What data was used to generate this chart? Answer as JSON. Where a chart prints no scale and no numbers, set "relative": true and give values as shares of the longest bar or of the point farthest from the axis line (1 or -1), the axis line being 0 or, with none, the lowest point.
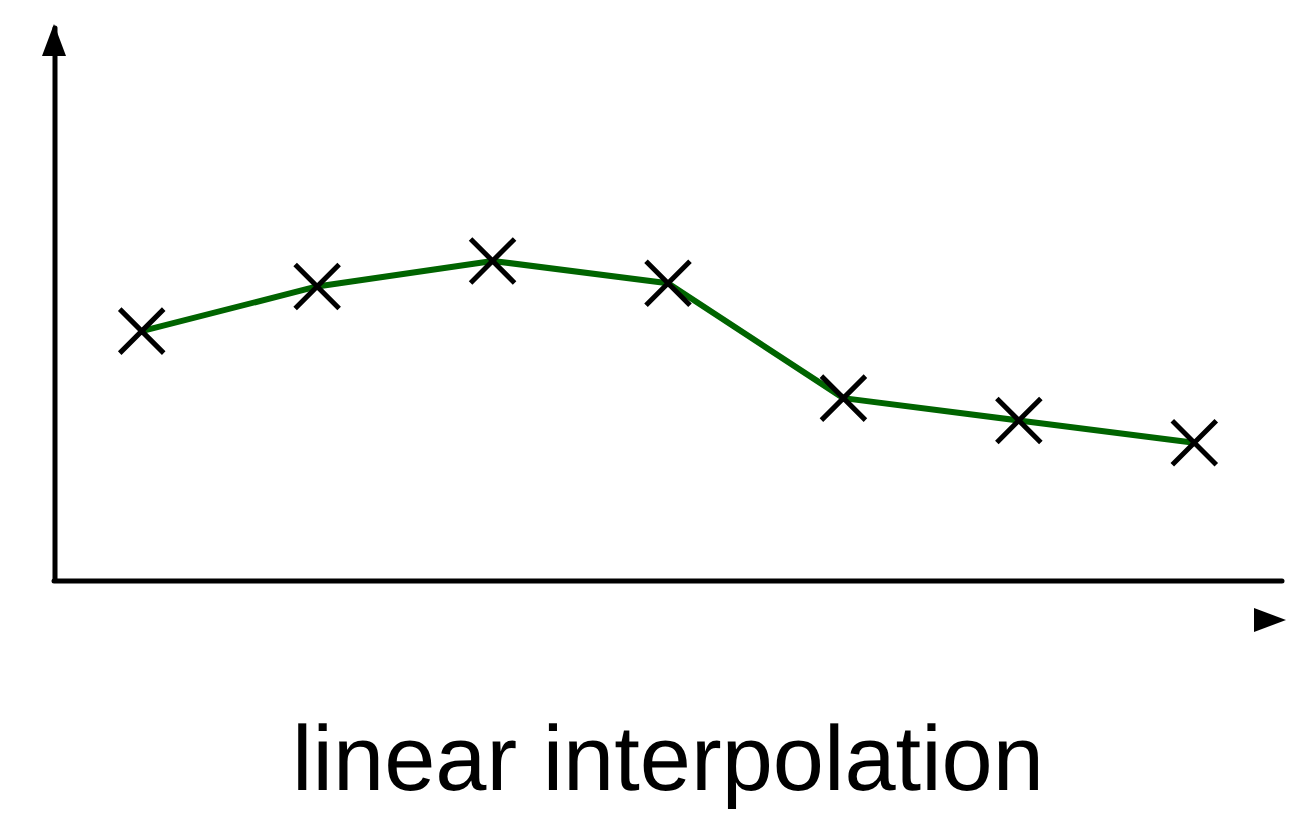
{
  "chart_data": {
    "type": "line",
    "xlabel": "linear interpolation",
    "relative": true,
    "categories": [
      null,
      null,
      null,
      null,
      null,
      null,
      null
    ],
    "series": [
      {
        "color": "#006400",
        "values": [
          0.78,
          0.92,
          1,
          0.93,
          0.57,
          0.5,
          0.43
        ]
      }
    ],
    "marker": "cross",
    "line_style": "solid"
  }
}
